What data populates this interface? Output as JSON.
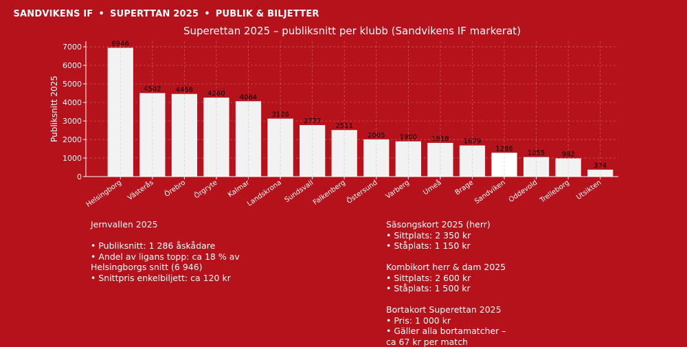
{
  "header": {
    "parts": [
      "SANDVIKENS IF",
      "SUPERTTAN 2025",
      "PUBLIK & BILJETTER"
    ],
    "separator": "•"
  },
  "colors": {
    "background": "#b5121b",
    "bar": "#f2f2f2",
    "bar_highlight": "#ffffff",
    "text": "#ffffff"
  },
  "chart_data": {
    "type": "bar",
    "title": "Superettan 2025 – publiksnitt per klubb (Sandvikens IF markerat)",
    "xlabel": "",
    "ylabel": "Publiksnitt 2025",
    "ylim": [
      0,
      7300
    ],
    "yticks": [
      0,
      1000,
      2000,
      3000,
      4000,
      5000,
      6000,
      7000
    ],
    "grid": true,
    "highlight": "Sandviken",
    "categories": [
      "Helsingborg",
      "Västerås",
      "Örebro",
      "Örgryte",
      "Kalmar",
      "Landskrona",
      "Sundsvall",
      "Falkenberg",
      "Östersund",
      "Varberg",
      "Umeå",
      "Brage",
      "Sandviken",
      "Oddevold",
      "Trelleborg",
      "Utsikten"
    ],
    "values": [
      6946,
      4502,
      4458,
      4260,
      4064,
      3126,
      2777,
      2511,
      2005,
      1900,
      1818,
      1679,
      1286,
      1055,
      982,
      374
    ]
  },
  "info_left": {
    "lines": [
      "Jernvallen 2025",
      "",
      "• Publiksnitt: 1 286 åskådare",
      "• Andel av ligans topp: ca 18 % av",
      "  Helsingborgs snitt (6 946)",
      "• Snittpris enkelbiljett: ca 120 kr"
    ]
  },
  "info_right": {
    "lines": [
      "Säsongskort 2025 (herr)",
      "• Sittplats: 2 350 kr",
      "• Ståplats: 1 150 kr",
      "",
      "Kombikort herr & dam 2025",
      "• Sittplats: 2 600 kr",
      "• Ståplats: 1 500 kr",
      "",
      "Bortakort Superettan 2025",
      "• Pris: 1 000 kr",
      "• Gäller alla bortamatcher –",
      "  ca 67 kr per match"
    ]
  }
}
